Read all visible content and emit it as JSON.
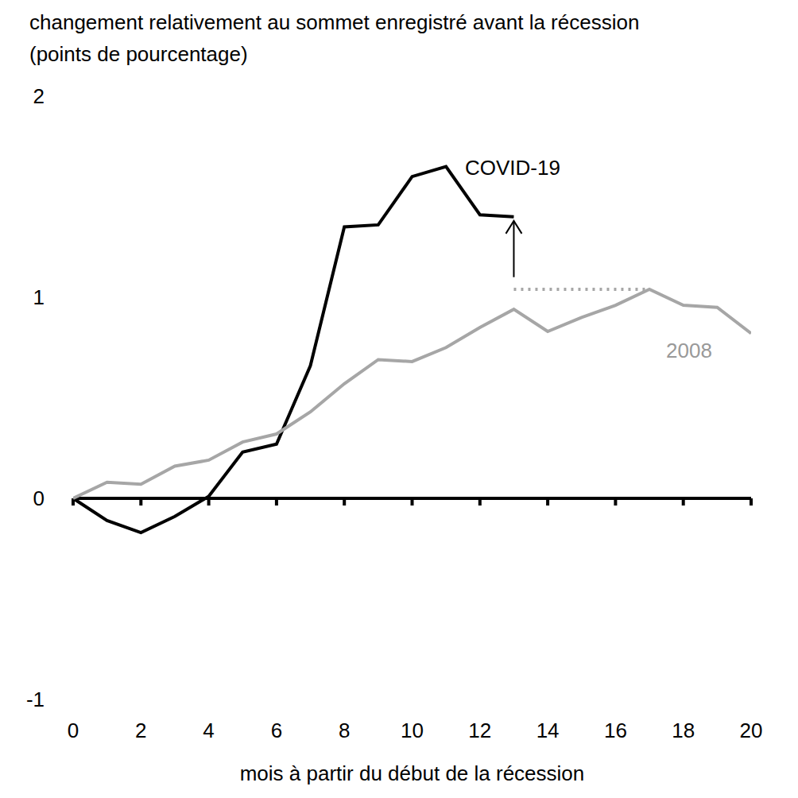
{
  "chart_data": {
    "type": "line",
    "title": "changement relativement au sommet enregistré avant la récession (points de pourcentage)",
    "x_label": "mois à partir du début de la récession",
    "x": [
      0,
      1,
      2,
      3,
      4,
      5,
      6,
      7,
      8,
      9,
      10,
      11,
      12,
      13,
      14,
      15,
      16,
      17,
      18,
      19,
      20
    ],
    "xlim": [
      0,
      20
    ],
    "xticks": [
      0,
      2,
      4,
      6,
      8,
      10,
      12,
      14,
      16,
      18,
      20
    ],
    "ylim": [
      -1,
      2
    ],
    "yticks": [
      -1,
      0,
      1,
      2
    ],
    "grid": false,
    "baseline": 0,
    "series": [
      {
        "name": "COVID-19",
        "color": "#000000",
        "values": [
          0,
          -0.11,
          -0.17,
          -0.09,
          0.01,
          0.23,
          0.27,
          0.66,
          1.35,
          1.36,
          1.6,
          1.65,
          1.41,
          1.4,
          null,
          null,
          null,
          null,
          null,
          null,
          null
        ]
      },
      {
        "name": "2008",
        "color": "#a6a6a6",
        "values": [
          0,
          0.08,
          0.07,
          0.16,
          0.19,
          0.28,
          0.32,
          0.43,
          0.57,
          0.69,
          0.68,
          0.75,
          0.85,
          0.94,
          0.83,
          0.9,
          0.96,
          1.04,
          0.96,
          0.95,
          0.82
        ]
      }
    ],
    "reference_line": {
      "x": [
        13,
        17
      ],
      "y": 1.04,
      "line_style": "dotted",
      "color": "#a6a6a6"
    },
    "arrow": {
      "x": 13,
      "y": [
        1.1,
        1.38
      ]
    }
  }
}
